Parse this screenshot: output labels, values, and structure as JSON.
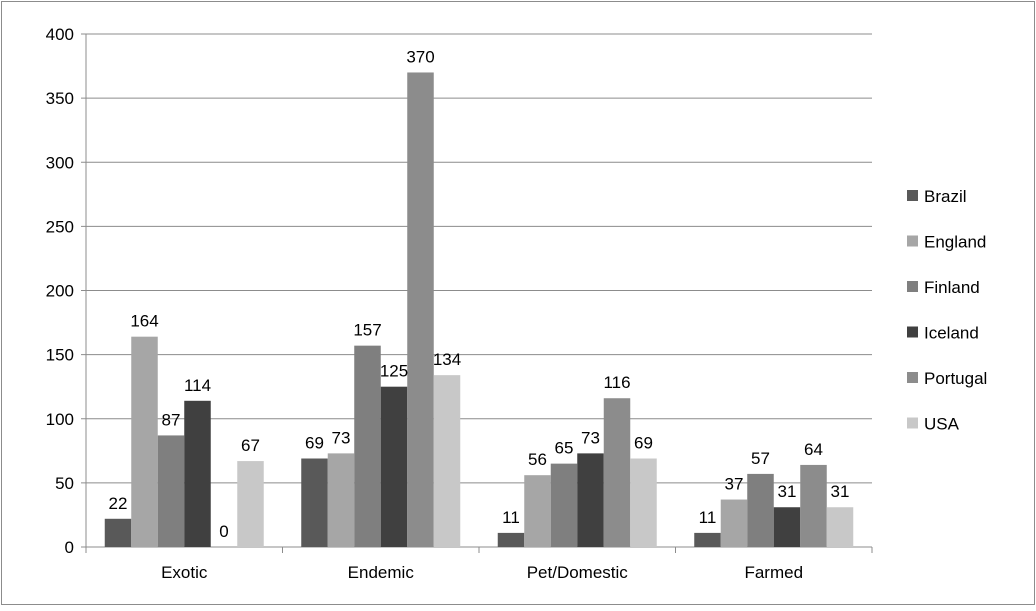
{
  "chart_data": {
    "type": "bar",
    "title": "",
    "xlabel": "",
    "ylabel": "",
    "categories": [
      "Exotic",
      "Endemic",
      "Pet/Domestic",
      "Farmed"
    ],
    "ylim": [
      0,
      400
    ],
    "yticks": [
      0,
      50,
      100,
      150,
      200,
      250,
      300,
      350,
      400
    ],
    "grid": true,
    "legend_position": "right",
    "series": [
      {
        "name": "Brazil",
        "color": "#595959",
        "values": [
          22,
          69,
          11,
          11
        ]
      },
      {
        "name": "England",
        "color": "#a6a6a6",
        "values": [
          164,
          73,
          56,
          37
        ]
      },
      {
        "name": "Finland",
        "color": "#7f7f7f",
        "values": [
          87,
          157,
          65,
          57
        ]
      },
      {
        "name": "Iceland",
        "color": "#404040",
        "values": [
          114,
          125,
          73,
          31
        ]
      },
      {
        "name": "Portugal",
        "color": "#8c8c8c",
        "values": [
          0,
          370,
          116,
          64
        ]
      },
      {
        "name": "USA",
        "color": "#c8c8c8",
        "values": [
          67,
          134,
          69,
          31
        ]
      }
    ]
  }
}
